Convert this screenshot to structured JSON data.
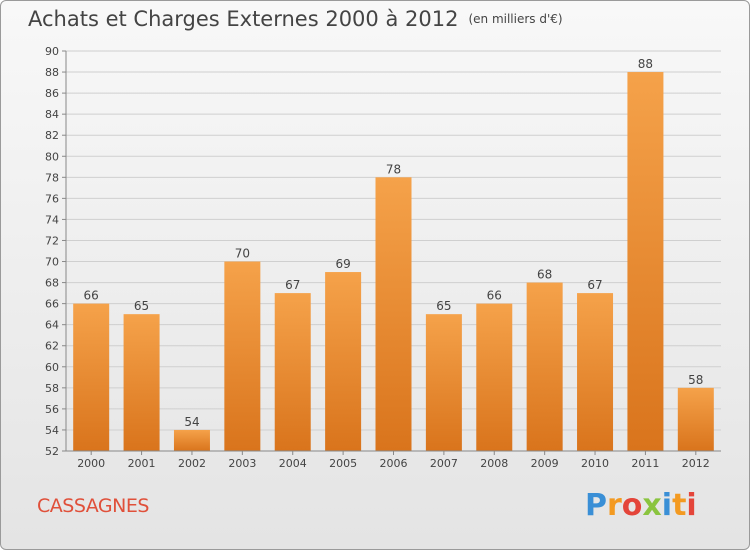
{
  "title": "Achats et Charges Externes 2000 à 2012",
  "unit_note": "(en milliers d'€)",
  "commune": "CASSAGNES",
  "logo": {
    "text": "Proxiti",
    "colors": [
      "#3a8fd6",
      "#f39a21",
      "#e4453a",
      "#8ac43f"
    ]
  },
  "colors": {
    "bar_top": "#f5a24a",
    "bar_bottom": "#d9741c",
    "title": "#444444",
    "commune": "#e0503a",
    "grid": "#cfcfcf"
  },
  "chart_data": {
    "type": "bar",
    "categories": [
      "2000",
      "2001",
      "2002",
      "2003",
      "2004",
      "2005",
      "2006",
      "2007",
      "2008",
      "2009",
      "2010",
      "2011",
      "2012"
    ],
    "values": [
      66,
      65,
      54,
      70,
      67,
      69,
      78,
      65,
      66,
      68,
      67,
      88,
      58
    ],
    "ylim": [
      52,
      90
    ],
    "yticks": [
      52,
      54,
      56,
      58,
      60,
      62,
      64,
      66,
      68,
      70,
      72,
      74,
      76,
      78,
      80,
      82,
      84,
      86,
      88,
      90
    ],
    "grid": true,
    "title": "Achats et Charges Externes 2000 à 2012",
    "xlabel": "",
    "ylabel": ""
  }
}
